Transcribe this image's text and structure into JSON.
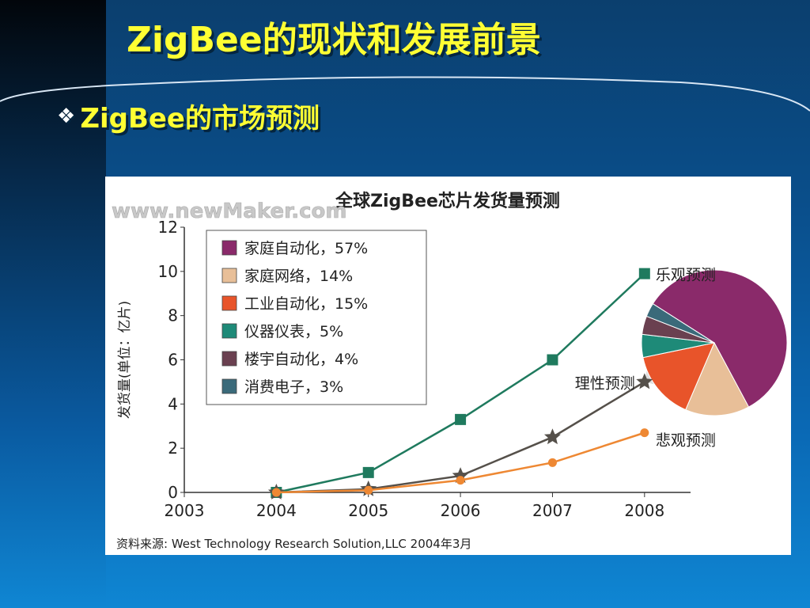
{
  "slide": {
    "title": "ZigBee的现状和发展前景",
    "bullet_icon": "diamond-quad-icon",
    "bullet": "ZigBee的市场预测"
  },
  "colors": {
    "title_text": "#ffff33",
    "optimistic": "#1f7a5e",
    "rational": "#55504a",
    "pessimistic": "#ee8833"
  },
  "chart_data": {
    "type": "line",
    "title": "全球ZigBee芯片发货量预测",
    "watermark": "www.newMaker.com",
    "ylabel": "发货量(单位：亿片)",
    "x": [
      2003,
      2004,
      2005,
      2006,
      2007,
      2008
    ],
    "x_tick_labels": [
      "2003",
      "2004",
      "2005",
      "2006",
      "2007",
      "2008"
    ],
    "y_tick_labels": [
      "0",
      "2",
      "4",
      "6",
      "8",
      "10",
      "12"
    ],
    "xlim": [
      2003,
      2008.5
    ],
    "ylim": [
      0,
      12
    ],
    "series": [
      {
        "name": "乐观预测",
        "x": [
          2004,
          2005,
          2006,
          2007,
          2008
        ],
        "values": [
          0,
          0.9,
          3.3,
          6.0,
          9.9
        ],
        "marker": "square",
        "color": "#1f7a5e"
      },
      {
        "name": "理性预测",
        "x": [
          2004,
          2005,
          2006,
          2007,
          2008
        ],
        "values": [
          0,
          0.15,
          0.75,
          2.5,
          5.0
        ],
        "marker": "star",
        "color": "#55504a"
      },
      {
        "name": "悲观预测",
        "x": [
          2004,
          2005,
          2006,
          2007,
          2008
        ],
        "values": [
          0,
          0.1,
          0.55,
          1.35,
          2.7
        ],
        "marker": "circle",
        "color": "#ee8833"
      }
    ],
    "legend": [
      {
        "label": "家庭自动化，57%",
        "value": 57,
        "color": "#8a2a6a"
      },
      {
        "label": "家庭网络，14%",
        "value": 14,
        "color": "#e8bf98"
      },
      {
        "label": "工业自动化，15%",
        "value": 15,
        "color": "#e8542a"
      },
      {
        "label": "仪器仪表，5%",
        "value": 5,
        "color": "#1e8a78"
      },
      {
        "label": "楼宇自动化，4%",
        "value": 4,
        "color": "#6a4050"
      },
      {
        "label": "消费电子，3%",
        "value": 3,
        "color": "#3a6a7a"
      }
    ],
    "legend_placement": "top-left",
    "pie_attached_to": "理性预测 2008",
    "source": "资料来源:  West Technology Research Solution,LLC 2004年3月"
  }
}
